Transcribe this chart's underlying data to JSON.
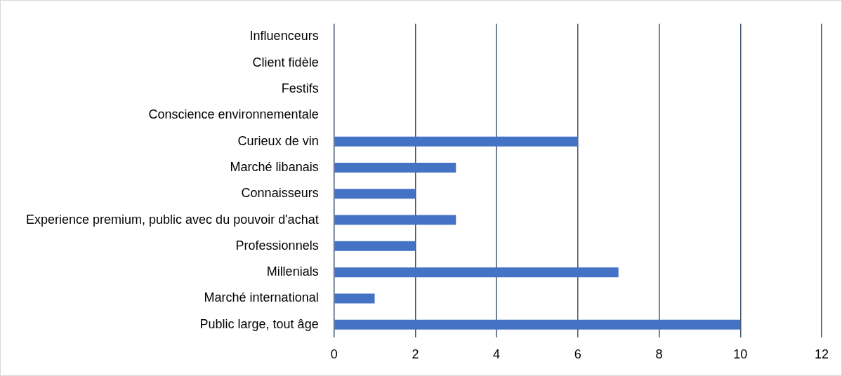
{
  "chart_data": {
    "type": "bar",
    "orientation": "horizontal",
    "categories": [
      "Influenceurs",
      "Client fidèle",
      "Festifs",
      "Conscience environnementale",
      "Curieux de vin",
      "Marché libanais",
      "Connaisseurs",
      "Experience premium, public avec du pouvoir d'achat",
      "Professionnels",
      "Millenials",
      "Marché international",
      "Public large, tout âge"
    ],
    "values": [
      0,
      0,
      0,
      0,
      6,
      3,
      2,
      3,
      2,
      7,
      1,
      10
    ],
    "color": "#4472c4",
    "xlim": [
      0,
      12
    ],
    "xticks": [
      0,
      2,
      4,
      6,
      8,
      10,
      12
    ],
    "grid": "x",
    "legend": false
  }
}
